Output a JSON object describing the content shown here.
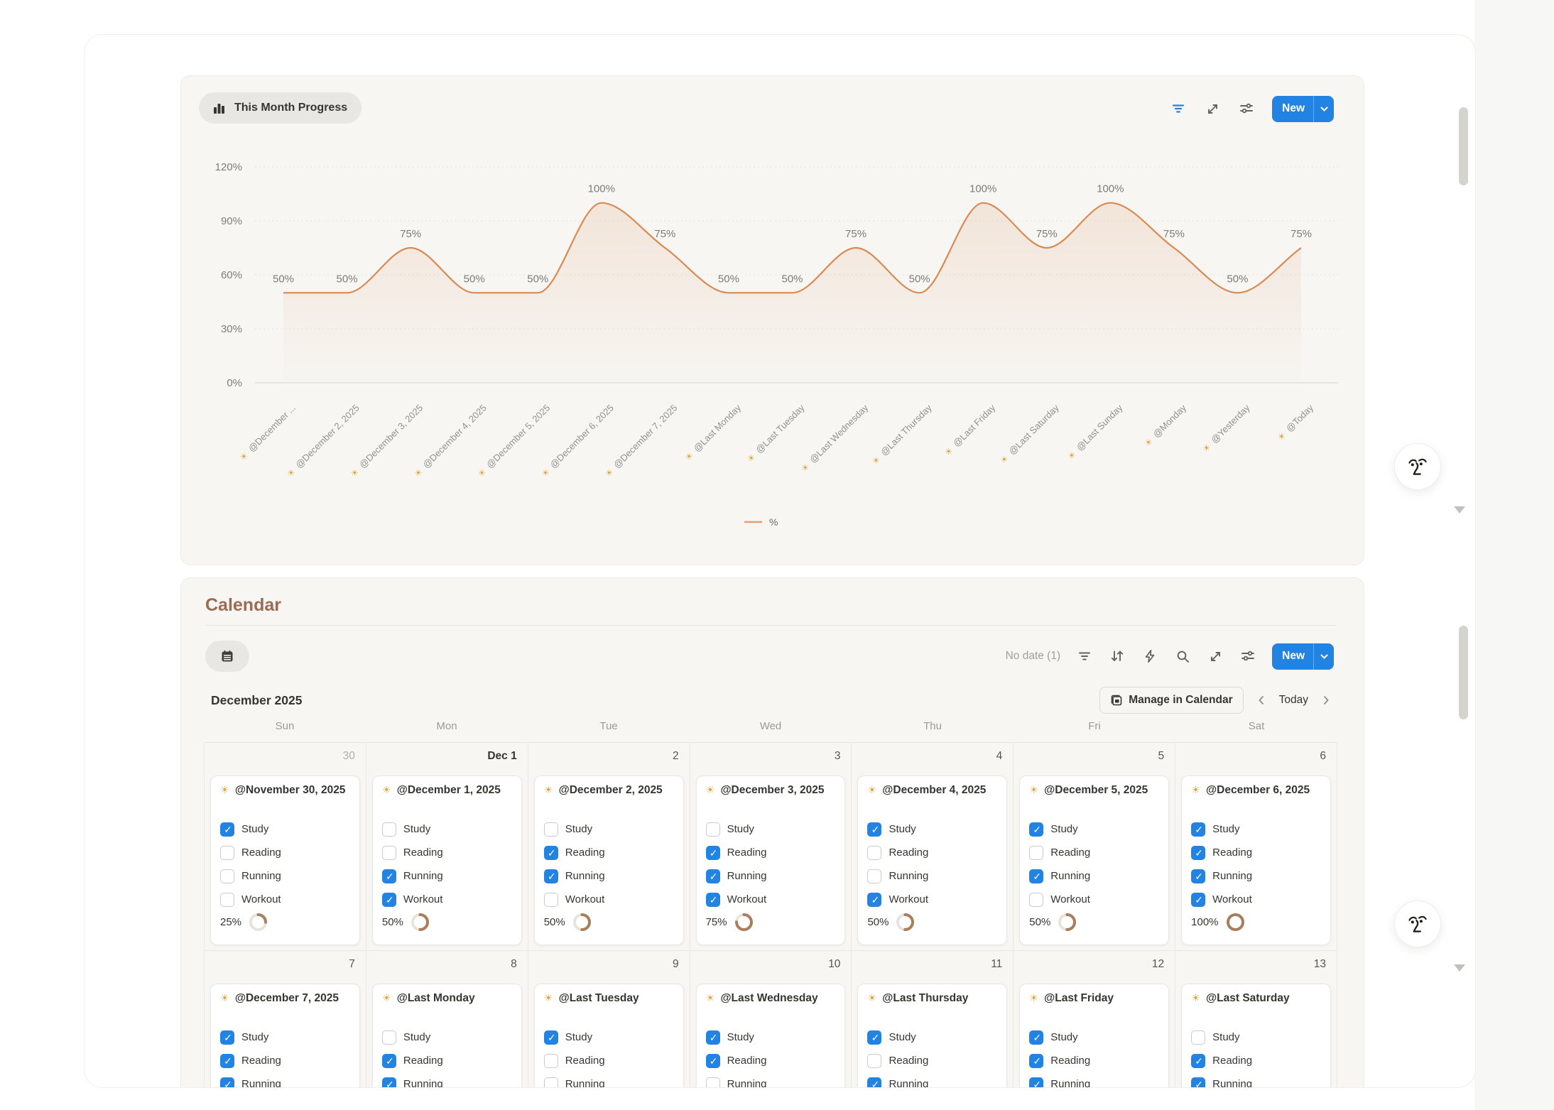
{
  "icons": {
    "sun": "☀"
  },
  "chart_panel": {
    "title": "This Month Progress",
    "toolbar": {
      "new_label": "New"
    },
    "legend_label": "%",
    "accent": "#D98A52",
    "filter_color": "#2383E2"
  },
  "chart_data": {
    "type": "area",
    "x": [
      "@December ...",
      "@December 2, 2025",
      "@December 3, 2025",
      "@December 4, 2025",
      "@December 5, 2025",
      "@December 6, 2025",
      "@December 7, 2025",
      "@Last Monday",
      "@Last Tuesday",
      "@Last Wednesday",
      "@Last Thursday",
      "@Last Friday",
      "@Last Saturday",
      "@Last Sunday",
      "@Monday",
      "@Yesterday",
      "@Today"
    ],
    "series": [
      {
        "name": "%",
        "values": [
          50,
          50,
          75,
          50,
          50,
          100,
          75,
          50,
          50,
          75,
          50,
          100,
          75,
          100,
          75,
          50,
          75
        ]
      }
    ],
    "point_labels": [
      "50%",
      "50%",
      "75%",
      "50%",
      "50%",
      "100%",
      "75%",
      "50%",
      "50%",
      "75%",
      "50%",
      "100%",
      "75%",
      "100%",
      "75%",
      "50%",
      "75%"
    ],
    "y_ticks": [
      "0%",
      "30%",
      "60%",
      "90%",
      "120%"
    ],
    "ylim": [
      0,
      120
    ],
    "grid": "dotted-horizontal",
    "legend_position": "bottom-center",
    "title": "This Month Progress",
    "xlabel": "",
    "ylabel": ""
  },
  "calendar": {
    "title": "Calendar",
    "toolbar": {
      "no_date": "No date (1)",
      "new_label": "New"
    },
    "month_label": "December 2025",
    "manage_button": "Manage in Calendar",
    "today_label": "Today",
    "day_headers": [
      "Sun",
      "Mon",
      "Tue",
      "Wed",
      "Thu",
      "Fri",
      "Sat"
    ],
    "weeks": [
      {
        "days": [
          {
            "date": "30",
            "style": "muted",
            "card": {
              "title": "@November 30, 2025",
              "tasks": [
                {
                  "label": "Study",
                  "checked": true
                },
                {
                  "label": "Reading",
                  "checked": false
                },
                {
                  "label": "Running",
                  "checked": false
                },
                {
                  "label": "Workout",
                  "checked": false
                }
              ],
              "progress_label": "25%",
              "progress_value": 25
            }
          },
          {
            "date": "Dec 1",
            "style": "strong",
            "card": {
              "title": "@December 1, 2025",
              "tasks": [
                {
                  "label": "Study",
                  "checked": false
                },
                {
                  "label": "Reading",
                  "checked": false
                },
                {
                  "label": "Running",
                  "checked": true
                },
                {
                  "label": "Workout",
                  "checked": true
                }
              ],
              "progress_label": "50%",
              "progress_value": 50
            }
          },
          {
            "date": "2",
            "style": "normal",
            "card": {
              "title": "@December 2, 2025",
              "tasks": [
                {
                  "label": "Study",
                  "checked": false
                },
                {
                  "label": "Reading",
                  "checked": true
                },
                {
                  "label": "Running",
                  "checked": true
                },
                {
                  "label": "Workout",
                  "checked": false
                }
              ],
              "progress_label": "50%",
              "progress_value": 50
            }
          },
          {
            "date": "3",
            "style": "normal",
            "card": {
              "title": "@December 3, 2025",
              "tasks": [
                {
                  "label": "Study",
                  "checked": false
                },
                {
                  "label": "Reading",
                  "checked": true
                },
                {
                  "label": "Running",
                  "checked": true
                },
                {
                  "label": "Workout",
                  "checked": true
                }
              ],
              "progress_label": "75%",
              "progress_value": 75
            }
          },
          {
            "date": "4",
            "style": "normal",
            "card": {
              "title": "@December 4, 2025",
              "tasks": [
                {
                  "label": "Study",
                  "checked": true
                },
                {
                  "label": "Reading",
                  "checked": false
                },
                {
                  "label": "Running",
                  "checked": false
                },
                {
                  "label": "Workout",
                  "checked": true
                }
              ],
              "progress_label": "50%",
              "progress_value": 50
            }
          },
          {
            "date": "5",
            "style": "normal",
            "card": {
              "title": "@December 5, 2025",
              "tasks": [
                {
                  "label": "Study",
                  "checked": true
                },
                {
                  "label": "Reading",
                  "checked": false
                },
                {
                  "label": "Running",
                  "checked": true
                },
                {
                  "label": "Workout",
                  "checked": false
                }
              ],
              "progress_label": "50%",
              "progress_value": 50
            }
          },
          {
            "date": "6",
            "style": "normal",
            "card": {
              "title": "@December 6, 2025",
              "tasks": [
                {
                  "label": "Study",
                  "checked": true
                },
                {
                  "label": "Reading",
                  "checked": true
                },
                {
                  "label": "Running",
                  "checked": true
                },
                {
                  "label": "Workout",
                  "checked": true
                }
              ],
              "progress_label": "100%",
              "progress_value": 100
            }
          }
        ]
      },
      {
        "days": [
          {
            "date": "7",
            "style": "normal",
            "card": {
              "title": "@December 7, 2025",
              "tasks": [
                {
                  "label": "Study",
                  "checked": true
                },
                {
                  "label": "Reading",
                  "checked": true
                },
                {
                  "label": "Running",
                  "checked": true
                }
              ]
            }
          },
          {
            "date": "8",
            "style": "normal",
            "card": {
              "title": "@Last Monday",
              "tasks": [
                {
                  "label": "Study",
                  "checked": false
                },
                {
                  "label": "Reading",
                  "checked": true
                },
                {
                  "label": "Running",
                  "checked": true
                }
              ]
            }
          },
          {
            "date": "9",
            "style": "normal",
            "card": {
              "title": "@Last Tuesday",
              "tasks": [
                {
                  "label": "Study",
                  "checked": true
                },
                {
                  "label": "Reading",
                  "checked": false
                },
                {
                  "label": "Running",
                  "checked": false
                }
              ]
            }
          },
          {
            "date": "10",
            "style": "normal",
            "card": {
              "title": "@Last Wednesday",
              "tasks": [
                {
                  "label": "Study",
                  "checked": true
                },
                {
                  "label": "Reading",
                  "checked": true
                },
                {
                  "label": "Running",
                  "checked": false
                }
              ]
            }
          },
          {
            "date": "11",
            "style": "normal",
            "card": {
              "title": "@Last Thursday",
              "tasks": [
                {
                  "label": "Study",
                  "checked": true
                },
                {
                  "label": "Reading",
                  "checked": false
                },
                {
                  "label": "Running",
                  "checked": true
                }
              ]
            }
          },
          {
            "date": "12",
            "style": "normal",
            "card": {
              "title": "@Last Friday",
              "tasks": [
                {
                  "label": "Study",
                  "checked": true
                },
                {
                  "label": "Reading",
                  "checked": true
                },
                {
                  "label": "Running",
                  "checked": true
                }
              ]
            }
          },
          {
            "date": "13",
            "style": "normal",
            "card": {
              "title": "@Last Saturday",
              "tasks": [
                {
                  "label": "Study",
                  "checked": false
                },
                {
                  "label": "Reading",
                  "checked": true
                },
                {
                  "label": "Running",
                  "checked": true
                }
              ]
            }
          }
        ]
      }
    ]
  },
  "colors": {
    "checkbox_blue": "#2383E2",
    "new_button_blue": "#2383E2",
    "progress_ring": "#A87E5B",
    "progress_track": "#E8E3DC",
    "calendar_title_brown": "#9A6B55",
    "chart_line_orange": "#D98A52",
    "sun_orange": "#E2A23C"
  }
}
